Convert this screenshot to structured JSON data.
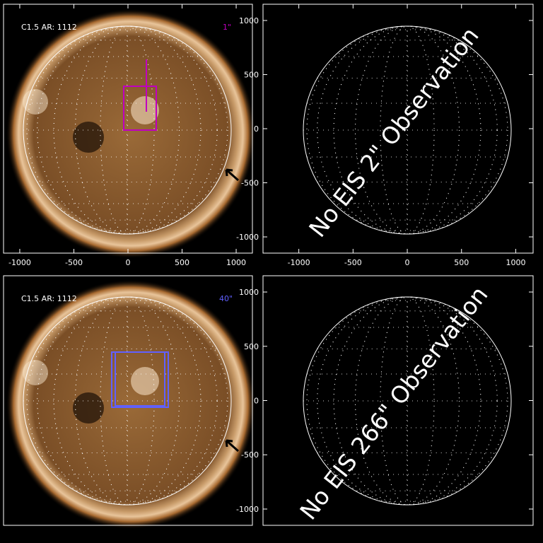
{
  "panels": [
    {
      "label": "C1.5 AR: 1112",
      "slit": "1\"",
      "xlim": [
        -1150,
        1150
      ],
      "xticks": [
        -1000,
        -500,
        0,
        500,
        1000
      ]
    },
    {
      "message": "No EIS 2\" Observation",
      "xlim": [
        -1330,
        1160
      ],
      "ylim": [
        -1150,
        1150
      ],
      "xticks": [
        -1000,
        -500,
        0,
        500,
        1000
      ],
      "yticks": [
        -1000,
        -500,
        0,
        500,
        1000
      ]
    },
    {
      "label": "C1.5 AR: 1112",
      "slit": "40\""
    },
    {
      "message": "No EIS 266\" Observation",
      "ylim": [
        -1150,
        1150
      ],
      "yticks": [
        -1000,
        -500,
        0,
        500,
        1000
      ]
    }
  ]
}
